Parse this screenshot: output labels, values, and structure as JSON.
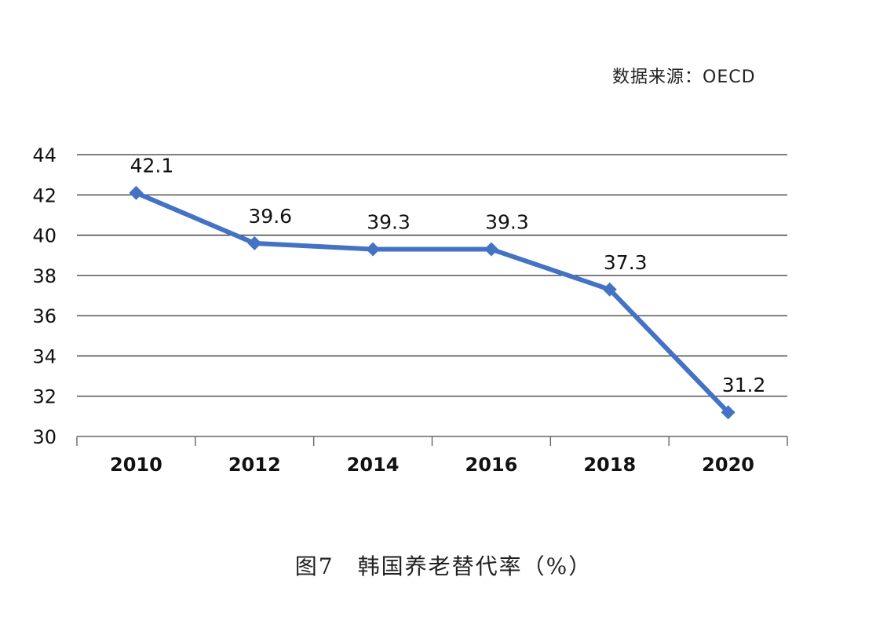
{
  "source_note": "数据来源：OECD",
  "caption": "图7　韩国养老替代率（%）",
  "colors": {
    "line": "#4472c4",
    "grid": "#333333",
    "text": "#111111"
  },
  "chart_data": {
    "type": "line",
    "title": "",
    "xlabel": "",
    "ylabel": "",
    "categories": [
      "2010",
      "2012",
      "2014",
      "2016",
      "2018",
      "2020"
    ],
    "x": [
      2010,
      2012,
      2014,
      2016,
      2018,
      2020
    ],
    "series": [
      {
        "values": [
          42.1,
          39.6,
          39.3,
          39.3,
          37.3,
          31.2
        ],
        "labels": [
          "42.1",
          "39.6",
          "39.3",
          "39.3",
          "37.3",
          "31.2"
        ]
      }
    ],
    "ylim": [
      30,
      44
    ],
    "yticks": [
      30,
      32,
      34,
      36,
      38,
      40,
      42,
      44
    ],
    "ytick_labels": [
      "30",
      "32",
      "34",
      "36",
      "38",
      "40",
      "42",
      "44"
    ],
    "grid": true,
    "legend": "none"
  }
}
